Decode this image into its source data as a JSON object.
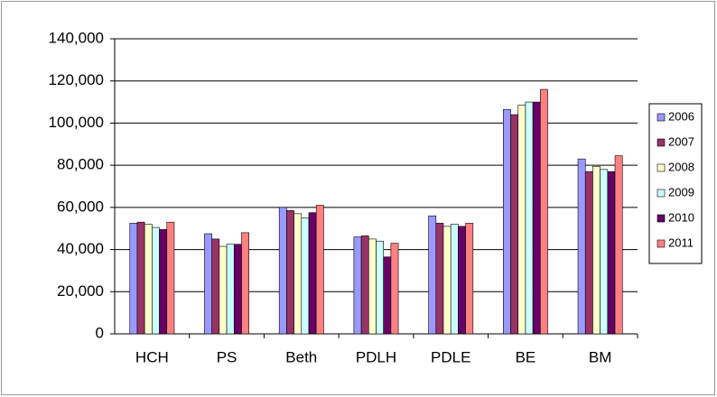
{
  "chart_data": {
    "type": "bar",
    "categories": [
      "HCH",
      "PS",
      "Beth",
      "PDLH",
      "PDLE",
      "BE",
      "BM"
    ],
    "series": [
      {
        "name": "2006",
        "color": "#9999ff",
        "values": [
          52500,
          47500,
          60000,
          46000,
          56000,
          106500,
          83000
        ]
      },
      {
        "name": "2007",
        "color": "#993366",
        "values": [
          53000,
          45000,
          58500,
          46500,
          52500,
          104000,
          77000
        ]
      },
      {
        "name": "2008",
        "color": "#ffffcc",
        "values": [
          52000,
          41500,
          57000,
          45000,
          51000,
          108500,
          79500
        ]
      },
      {
        "name": "2009",
        "color": "#ccffff",
        "values": [
          50500,
          42500,
          55000,
          44000,
          52000,
          110000,
          78000
        ]
      },
      {
        "name": "2010",
        "color": "#660066",
        "values": [
          49500,
          42500,
          57500,
          36500,
          51000,
          110000,
          77000
        ]
      },
      {
        "name": "2011",
        "color": "#ff8080",
        "values": [
          53000,
          48000,
          61000,
          43000,
          52500,
          116000,
          84500
        ]
      }
    ],
    "ylim": [
      0,
      140000
    ],
    "yticks": [
      0,
      {
        "value": 20000,
        "label": "20,000"
      },
      {
        "value": 40000,
        "label": "40,000"
      },
      {
        "value": 60000,
        "label": "60,000"
      },
      {
        "value": 80000,
        "label": "80,000"
      },
      {
        "value": 100000,
        "label": "100,000"
      },
      {
        "value": 120000,
        "label": "120,000"
      },
      {
        "value": 140000,
        "label": "140,000"
      }
    ],
    "grid": true,
    "legend": "right"
  }
}
